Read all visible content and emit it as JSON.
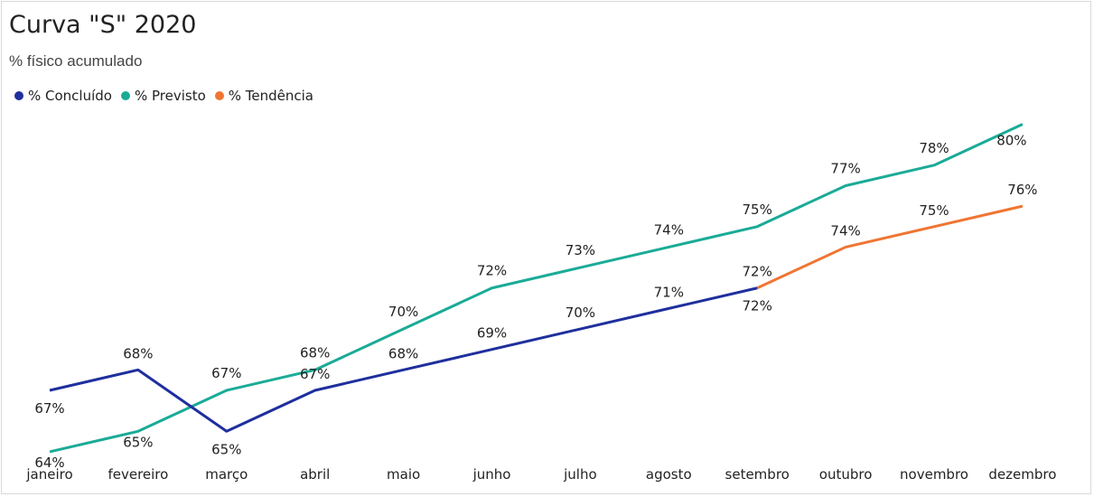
{
  "chart_data": {
    "type": "line",
    "title": "Curva \"S\" 2020",
    "subtitle": "% físico acumulado",
    "categories": [
      "janeiro",
      "fevereiro",
      "março",
      "abril",
      "maio",
      "junho",
      "julho",
      "agosto",
      "setembro",
      "outubro",
      "novembro",
      "dezembro"
    ],
    "series": [
      {
        "name": "% Concluído",
        "color": "#1f2f9e",
        "values": [
          67,
          68,
          65,
          67,
          68,
          69,
          70,
          71,
          72,
          null,
          null,
          null
        ],
        "labels": [
          "67%",
          "68%",
          "65%",
          "67%",
          "68%",
          "69%",
          "70%",
          "71%",
          "72%",
          "",
          "",
          ""
        ]
      },
      {
        "name": "% Previsto",
        "color": "#1aab97",
        "values": [
          64,
          65,
          67,
          68,
          70,
          72,
          73,
          74,
          75,
          77,
          78,
          80
        ],
        "labels": [
          "64%",
          "65%",
          "67%",
          "68%",
          "70%",
          "72%",
          "73%",
          "74%",
          "75%",
          "77%",
          "78%",
          "80%"
        ]
      },
      {
        "name": "% Tendência",
        "color": "#f07532",
        "values": [
          null,
          null,
          null,
          null,
          null,
          null,
          null,
          null,
          72,
          74,
          75,
          76
        ],
        "labels": [
          "",
          "",
          "",
          "",
          "",
          "",
          "",
          "",
          "72%",
          "74%",
          "75%",
          "76%"
        ]
      }
    ],
    "ylim": [
      63.6,
      80.2
    ],
    "legend_position": "top-left",
    "grid": false
  }
}
